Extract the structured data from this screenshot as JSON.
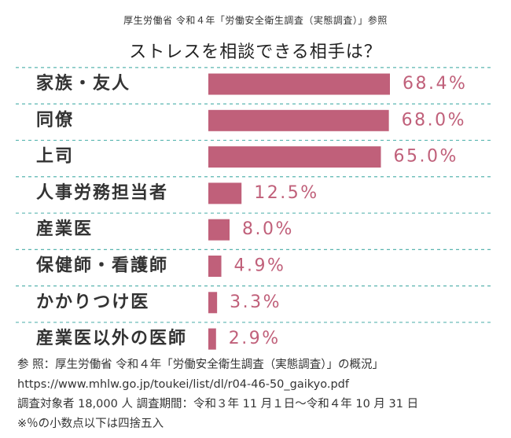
{
  "header": {
    "source_caption": "厚生労働省 令和４年「労働安全衛生調査（実態調査）」参照",
    "title": "ストレスを相談できる相手は？"
  },
  "colors": {
    "bar": "#c0607a",
    "value_text": "#c0607a",
    "divider": "#5ab5b0",
    "text": "#333333"
  },
  "chart_data": {
    "type": "bar",
    "orientation": "horizontal",
    "title": "ストレスを相談できる相手は？",
    "categories": [
      "家族・友人",
      "同僚",
      "上司",
      "人事労務担当者",
      "産業医",
      "保健師・看護師",
      "かかりつけ医",
      "産業医以外の医師"
    ],
    "values": [
      68.4,
      68.0,
      65.0,
      12.5,
      8.0,
      4.9,
      3.3,
      2.9
    ],
    "value_labels": [
      "68.4%",
      "68.0%",
      "65.0%",
      "12.5%",
      "8.0%",
      "4.9%",
      "3.3%",
      "2.9%"
    ],
    "unit": "%",
    "xlim": [
      0,
      68.4
    ],
    "grid": false,
    "legend": "none"
  },
  "notes": {
    "line1": "参 照：厚生労働省 令和４年「労働安全衛生調査（実態調査）」の概況」",
    "line2": "https://www.mhlw.go.jp/toukei/list/dl/r04-46-50_gaikyo.pdf",
    "line3": "調査対象者 18,000 人 調査期間：令和３年 11 月１日〜令和４年 10 月 31 日",
    "line4": "※％の小数点以下は四捨五入"
  }
}
